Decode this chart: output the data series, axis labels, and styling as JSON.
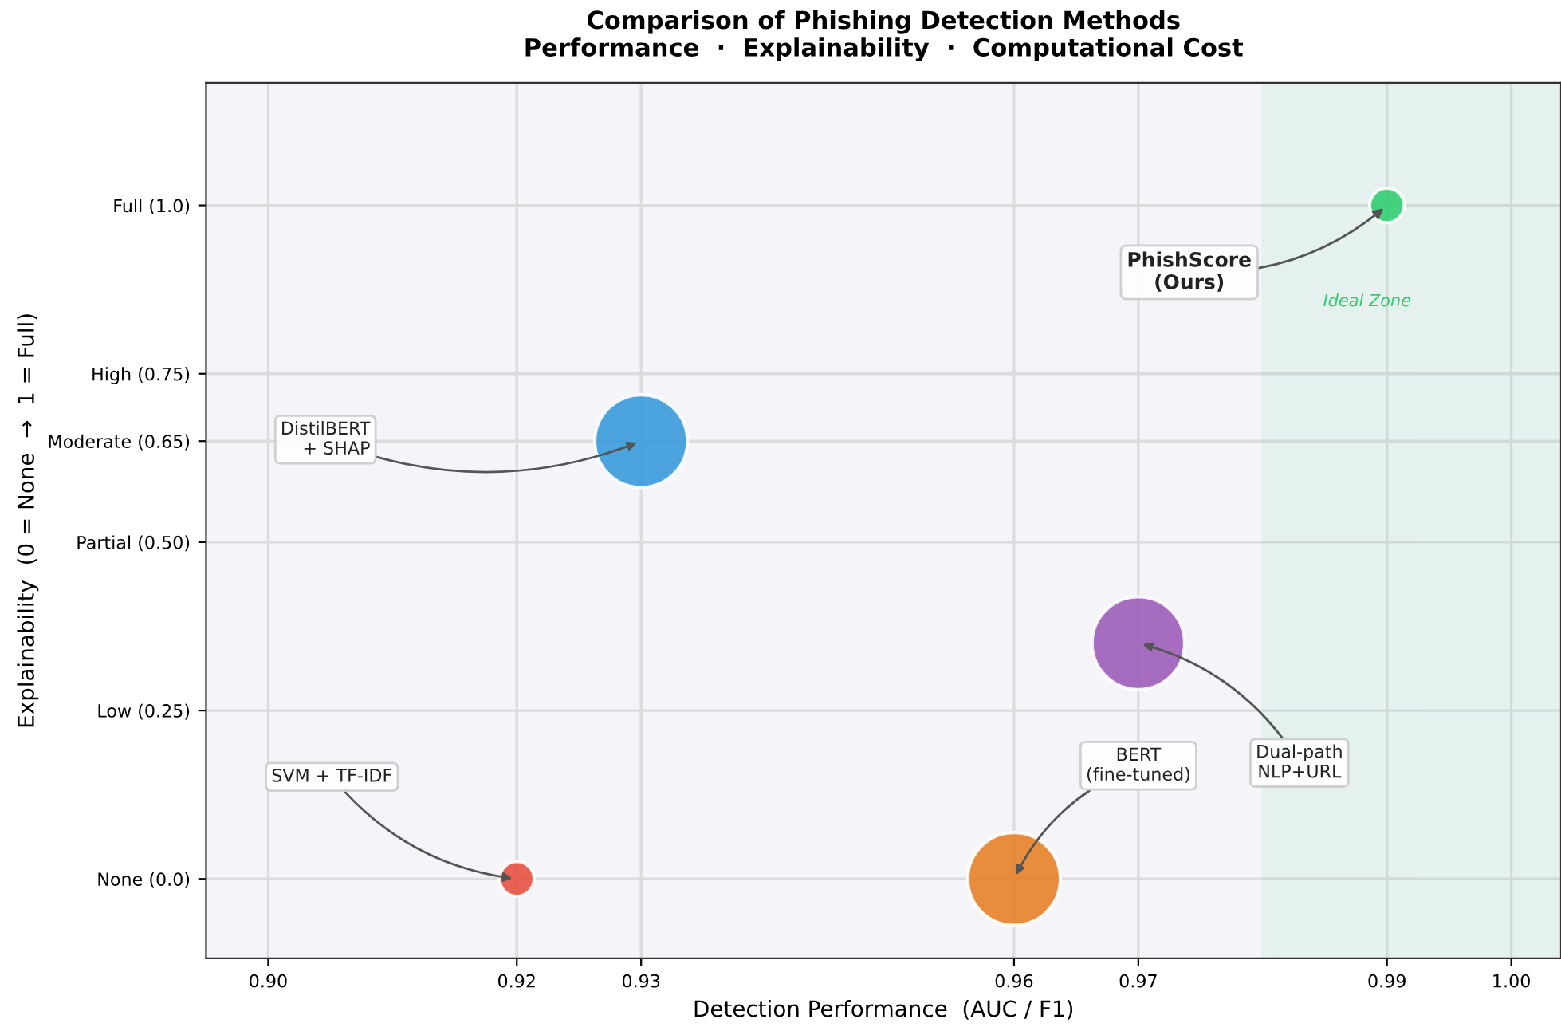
{
  "chart_data": {
    "type": "bubble",
    "title": "Comparison of Phishing Detection Methods",
    "subtitle": "Performance  ·  Explainability  ·  Computational Cost",
    "xlabel": "Detection Performance  (AUC / F1)",
    "ylabel": "Explainability  (0 = None  →  1 = Full)",
    "x": [
      0.92,
      0.93,
      0.96,
      0.97,
      0.99
    ],
    "values": [
      0.0,
      0.65,
      0.0,
      0.35,
      1.0
    ],
    "sizes": [
      0.14,
      1,
      1,
      1,
      0.14
    ],
    "colors": [
      "#e74c3c",
      "#3498db",
      "#e67e22",
      "#9b59b6",
      "#2ecc71"
    ],
    "annotations": [
      {
        "text": "SVM + TF-IDF",
        "x": 0.92,
        "y": 0.0
      },
      {
        "text": "DistilBERT\n+ SHAP",
        "x": 0.93,
        "y": 0.65
      },
      {
        "text": "BERT\n(fine-tuned)",
        "x": 0.96,
        "y": 0.0
      },
      {
        "text": "Dual-path\nNLP+URL",
        "x": 0.97,
        "y": 0.35
      },
      {
        "text": "PhishScore\n(Ours)",
        "x": 0.99,
        "y": 1.0
      }
    ],
    "bands": [
      {
        "axis": "x",
        "from": 0.98,
        "to": 1.004,
        "label": "Ideal Zone",
        "color": "#2ecc71"
      }
    ],
    "xlim": [
      0.895,
      1.004
    ],
    "ylim": [
      -0.118,
      1.182
    ],
    "xticks": [
      {
        "value": 0.9,
        "label": "0.90"
      },
      0.92,
      0.93,
      0.96,
      0.97,
      0.99,
      {
        "value": 1.0,
        "label": "1.00"
      }
    ],
    "yticks": [
      {
        "value": 0,
        "label": "None (0.0)"
      },
      {
        "value": 0.25,
        "label": "Low (0.25)"
      },
      {
        "value": 0.5,
        "label": "Partial (0.50)"
      },
      {
        "value": 0.65,
        "label": "Moderate (0.65)"
      },
      {
        "value": 0.75,
        "label": "High (0.75)"
      },
      {
        "value": 1.0,
        "label": "Full (1.0)"
      }
    ],
    "grid": true
  }
}
